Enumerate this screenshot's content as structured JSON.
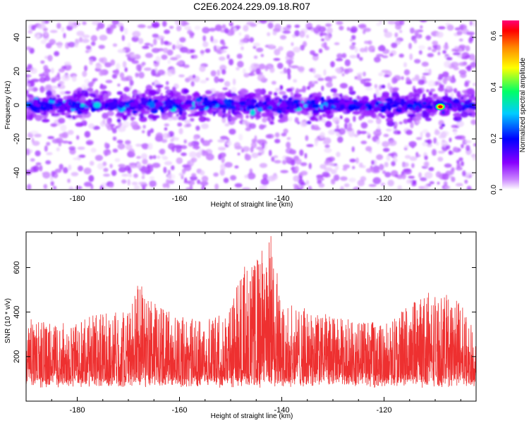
{
  "title": "C2E6.2024.229.09.18.R07",
  "chart_data": [
    {
      "type": "heatmap",
      "xlabel": "Height of straight line (km)",
      "ylabel": "Frequency (Hz)",
      "xlim": [
        -190,
        -102
      ],
      "ylim": [
        -50,
        50
      ],
      "xticks": [
        -180,
        -160,
        -140,
        -120
      ],
      "yticks": [
        -40,
        -20,
        0,
        20,
        40
      ],
      "colorbar": {
        "label": "Normalized spectral amplitude",
        "range": [
          0,
          0.66
        ],
        "ticks": [
          0.0,
          0.2,
          0.4,
          0.6
        ],
        "colormap": [
          "#ffffff",
          "#9900ff",
          "#0000ff",
          "#00ffff",
          "#00ff00",
          "#ffff00",
          "#ff7700",
          "#ff0000",
          "#ff0077"
        ]
      },
      "band": {
        "center_hz": 0,
        "halfwidth_hz": 10
      },
      "peak": {
        "x": -109,
        "y": -1,
        "value": 0.62
      },
      "series_color": "#8800ff"
    },
    {
      "type": "line",
      "xlabel": "Height of straight line (km)",
      "ylabel": "SNR (10 * v/v)",
      "xlim": [
        -190,
        -102
      ],
      "ylim": [
        0,
        760
      ],
      "xticks": [
        -180,
        -160,
        -140,
        -120
      ],
      "yticks": [
        200,
        400,
        600
      ],
      "color": "#ee3030",
      "envelope": [
        {
          "x": -190,
          "y": 380
        },
        {
          "x": -185,
          "y": 350
        },
        {
          "x": -180,
          "y": 360
        },
        {
          "x": -175,
          "y": 400
        },
        {
          "x": -170,
          "y": 420
        },
        {
          "x": -168,
          "y": 540
        },
        {
          "x": -165,
          "y": 440
        },
        {
          "x": -160,
          "y": 380
        },
        {
          "x": -155,
          "y": 360
        },
        {
          "x": -150,
          "y": 430
        },
        {
          "x": -148,
          "y": 620
        },
        {
          "x": -146,
          "y": 600
        },
        {
          "x": -144,
          "y": 680
        },
        {
          "x": -142,
          "y": 760
        },
        {
          "x": -140,
          "y": 440
        },
        {
          "x": -135,
          "y": 420
        },
        {
          "x": -130,
          "y": 380
        },
        {
          "x": -125,
          "y": 360
        },
        {
          "x": -120,
          "y": 350
        },
        {
          "x": -115,
          "y": 430
        },
        {
          "x": -112,
          "y": 500
        },
        {
          "x": -108,
          "y": 480
        },
        {
          "x": -105,
          "y": 440
        },
        {
          "x": -102,
          "y": 300
        }
      ]
    }
  ]
}
